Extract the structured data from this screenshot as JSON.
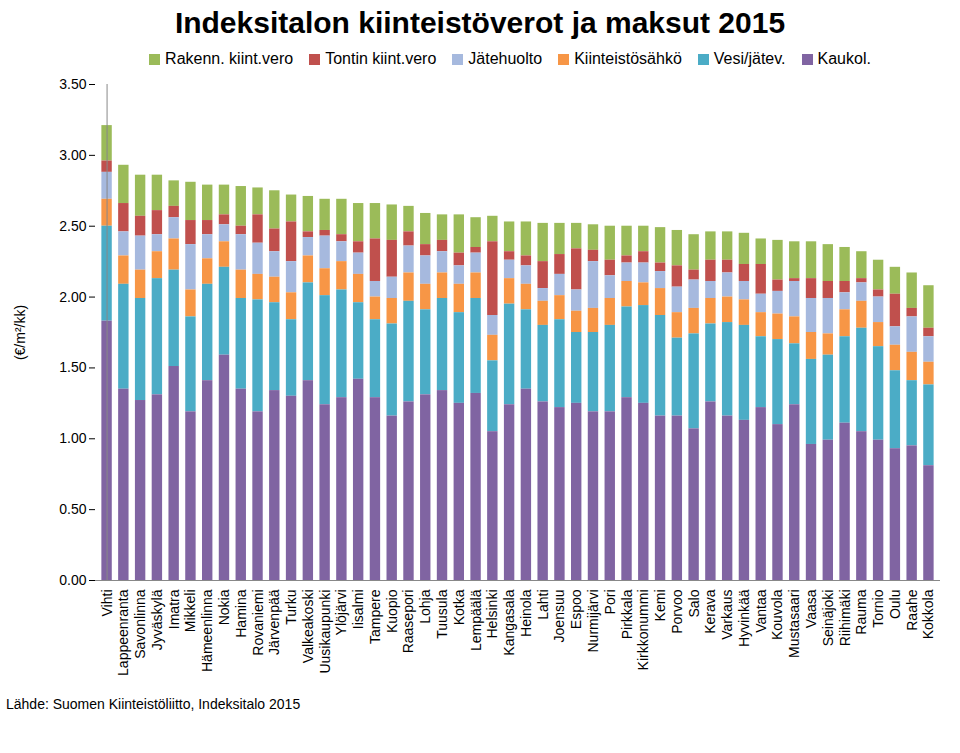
{
  "chart_data": {
    "type": "bar",
    "stacked": true,
    "grid": false,
    "title": "Indeksitalon kiinteistöverot ja maksut 2015",
    "y_label": "(€/m²/kk)",
    "caption": "Lähde: Suomen Kiinteistöliitto, Indeksitalo 2015",
    "legend": "top",
    "ylim": [
      0,
      3.5
    ],
    "yticks": [
      {
        "value": 0,
        "label": "0.00"
      },
      {
        "value": 0.5,
        "label": "0.50"
      },
      {
        "value": 1,
        "label": "1.00"
      },
      {
        "value": 1.5,
        "label": "1.50"
      },
      {
        "value": 2,
        "label": "2.00"
      },
      {
        "value": 2.5,
        "label": "2.50"
      },
      {
        "value": 3,
        "label": "3.00"
      },
      {
        "value": 3.5,
        "label": "3.50"
      }
    ],
    "categories": [
      "Vihti",
      "Lappeenranta",
      "Savonlinna",
      "Jyväskylä",
      "Imatra",
      "Mikkeli",
      "Hämeenlinna",
      "Nokia",
      "Hamina",
      "Rovaniemi",
      "Järvenpää",
      "Turku",
      "Valkeakoski",
      "Uusikaupunki",
      "Ylöjärvi",
      "Iisalmi",
      "Tampere",
      "Kuopio",
      "Raasepori",
      "Lohja",
      "Tuusula",
      "Kotka",
      "Lempäälä",
      "Helsinki",
      "Kangasala",
      "Heinola",
      "Lahti",
      "Joensuu",
      "Espoo",
      "Nurmijärvi",
      "Pori",
      "Pirkkala",
      "Kirkkonummi",
      "Kemi",
      "Porvoo",
      "Salo",
      "Kerava",
      "Varkaus",
      "Hyvinkää",
      "Vantaa",
      "Kouvola",
      "Mustasaari",
      "Vaasa",
      "Seinäjoki",
      "Riihimäki",
      "Rauma",
      "Tornio",
      "Oulu",
      "Raahe",
      "Kokkola"
    ],
    "series": [
      {
        "name": "Rakenn. kiint.vero",
        "color": "#9bbb59",
        "values": [
          0.25,
          0.27,
          0.29,
          0.25,
          0.18,
          0.27,
          0.25,
          0.21,
          0.28,
          0.19,
          0.27,
          0.19,
          0.25,
          0.22,
          0.25,
          0.27,
          0.25,
          0.25,
          0.18,
          0.22,
          0.18,
          0.27,
          0.21,
          0.18,
          0.21,
          0.24,
          0.27,
          0.22,
          0.18,
          0.18,
          0.24,
          0.21,
          0.18,
          0.25,
          0.25,
          0.25,
          0.2,
          0.2,
          0.22,
          0.18,
          0.28,
          0.26,
          0.26,
          0.26,
          0.24,
          0.19,
          0.21,
          0.19,
          0.25,
          0.3
        ]
      },
      {
        "name": "Tontin kiint.vero",
        "color": "#c0504d",
        "values": [
          0.08,
          0.2,
          0.14,
          0.17,
          0.08,
          0.17,
          0.1,
          0.07,
          0.06,
          0.2,
          0.16,
          0.28,
          0.04,
          0.04,
          0.05,
          0.08,
          0.3,
          0.26,
          0.1,
          0.08,
          0.08,
          0.09,
          0.04,
          0.52,
          0.06,
          0.07,
          0.19,
          0.14,
          0.29,
          0.08,
          0.11,
          0.05,
          0.08,
          0.06,
          0.15,
          0.07,
          0.15,
          0.09,
          0.12,
          0.21,
          0.08,
          0.02,
          0.14,
          0.12,
          0.08,
          0.03,
          0.05,
          0.23,
          0.06,
          0.06
        ]
      },
      {
        "name": "Jätehuolto",
        "color": "#a6b9de",
        "values": [
          0.19,
          0.17,
          0.24,
          0.12,
          0.15,
          0.32,
          0.17,
          0.12,
          0.25,
          0.22,
          0.18,
          0.22,
          0.13,
          0.23,
          0.14,
          0.15,
          0.11,
          0.15,
          0.19,
          0.2,
          0.15,
          0.13,
          0.14,
          0.14,
          0.13,
          0.13,
          0.09,
          0.15,
          0.15,
          0.33,
          0.16,
          0.13,
          0.14,
          0.12,
          0.18,
          0.2,
          0.12,
          0.17,
          0.13,
          0.13,
          0.16,
          0.25,
          0.24,
          0.25,
          0.12,
          0.13,
          0.18,
          0.13,
          0.25,
          0.18
        ]
      },
      {
        "name": "Kiinteistösähkö",
        "color": "#f79646",
        "values": [
          0.19,
          0.2,
          0.2,
          0.19,
          0.22,
          0.19,
          0.18,
          0.18,
          0.2,
          0.18,
          0.18,
          0.19,
          0.19,
          0.19,
          0.2,
          0.2,
          0.16,
          0.18,
          0.2,
          0.18,
          0.18,
          0.2,
          0.18,
          0.18,
          0.18,
          0.18,
          0.17,
          0.17,
          0.15,
          0.17,
          0.19,
          0.18,
          0.16,
          0.19,
          0.18,
          0.18,
          0.18,
          0.18,
          0.18,
          0.17,
          0.18,
          0.19,
          0.19,
          0.15,
          0.19,
          0.19,
          0.17,
          0.18,
          0.2,
          0.16
        ]
      },
      {
        "name": "Vesi/jätev.",
        "color": "#4bacc6",
        "values": [
          0.67,
          0.74,
          0.72,
          0.82,
          0.68,
          0.67,
          0.68,
          0.62,
          0.64,
          0.79,
          0.62,
          0.54,
          0.69,
          0.77,
          0.76,
          0.54,
          0.55,
          0.65,
          0.71,
          0.6,
          0.65,
          0.64,
          0.67,
          0.5,
          0.71,
          0.56,
          0.54,
          0.62,
          0.5,
          0.56,
          0.61,
          0.64,
          0.69,
          0.71,
          0.55,
          0.67,
          0.55,
          0.66,
          0.67,
          0.5,
          0.6,
          0.43,
          0.6,
          0.6,
          0.61,
          0.73,
          0.66,
          0.55,
          0.46,
          0.57
        ]
      },
      {
        "name": "Kaukol.",
        "color": "#8064a2",
        "values": [
          1.83,
          1.35,
          1.27,
          1.31,
          1.51,
          1.19,
          1.41,
          1.59,
          1.35,
          1.19,
          1.34,
          1.3,
          1.41,
          1.24,
          1.29,
          1.42,
          1.29,
          1.16,
          1.26,
          1.31,
          1.34,
          1.25,
          1.32,
          1.05,
          1.24,
          1.35,
          1.26,
          1.22,
          1.25,
          1.19,
          1.19,
          1.29,
          1.25,
          1.16,
          1.16,
          1.07,
          1.26,
          1.16,
          1.13,
          1.22,
          1.1,
          1.24,
          0.96,
          0.99,
          1.11,
          1.05,
          0.99,
          0.93,
          0.95,
          0.81
        ]
      }
    ]
  }
}
